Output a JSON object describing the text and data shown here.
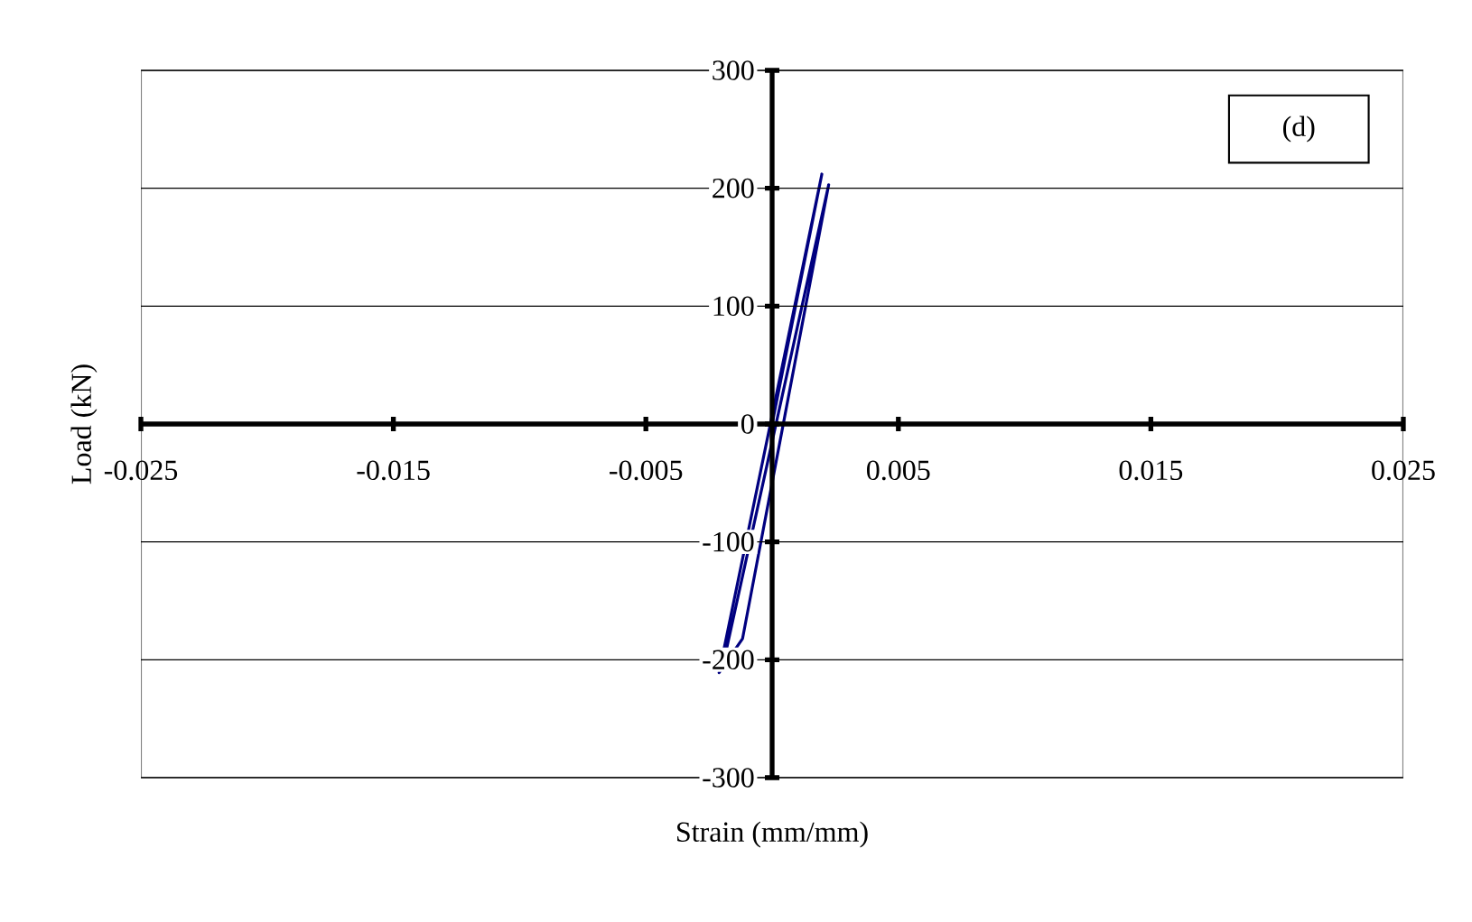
{
  "chart_data": {
    "type": "line",
    "xlabel": "Strain (mm/mm)",
    "ylabel": "Load (kN)",
    "annotations": [
      "(d)"
    ],
    "x": [
      0,
      0.00197,
      -0.0021,
      -0.00117,
      0.00224,
      -0.0019
    ],
    "series": [
      {
        "color": "#000080",
        "values": [
          0,
          212,
          -211,
          -182,
          203,
          -200
        ]
      }
    ],
    "xlim": [
      -0.025,
      0.025
    ],
    "ylim": [
      -300,
      300
    ],
    "xticks": [
      -0.025,
      -0.015,
      -0.005,
      0.005,
      0.015,
      0.025
    ],
    "yticks": [
      -300,
      -200,
      -100,
      0,
      100,
      200,
      300
    ],
    "grid": "y",
    "marker": "none",
    "line_style": "solid"
  }
}
